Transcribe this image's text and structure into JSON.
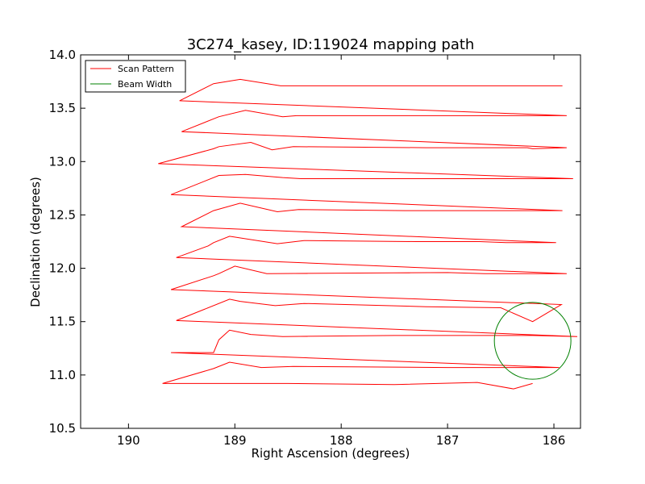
{
  "chart_data": {
    "type": "line",
    "title": "3C274_kasey, ID:119024 mapping path",
    "xlabel": "Right Ascension (degrees)",
    "ylabel": "Declination (degrees)",
    "xlim": [
      190.45,
      185.75
    ],
    "ylim": [
      10.5,
      14.0
    ],
    "x_reversed": true,
    "xticks": [
      190,
      189,
      188,
      187,
      186
    ],
    "xtick_labels": [
      "190",
      "189",
      "188",
      "187",
      "186"
    ],
    "yticks": [
      10.5,
      11.0,
      11.5,
      12.0,
      12.5,
      13.0,
      13.5,
      14.0
    ],
    "ytick_labels": [
      "10.5",
      "11.0",
      "11.5",
      "12.0",
      "12.5",
      "13.0",
      "13.5",
      "14.0"
    ],
    "legend_position": "top-left",
    "series": [
      {
        "name": "Scan Pattern",
        "color": "#ff0000",
        "x": [
          186.2,
          186.38,
          186.72,
          187.5,
          188.5,
          189.68,
          189.2,
          189.05,
          188.75,
          188.45,
          187.0,
          185.95,
          189.6,
          189.2,
          189.15,
          189.05,
          188.85,
          188.55,
          187.5,
          186.75,
          186.5,
          186.2,
          185.78,
          189.55,
          189.05,
          188.95,
          188.62,
          188.35,
          187.2,
          186.5,
          186.2,
          185.93,
          189.6,
          189.2,
          189.15,
          189.0,
          188.7,
          187.0,
          186.65,
          186.4,
          186.2,
          185.88,
          189.55,
          189.25,
          189.2,
          189.05,
          188.6,
          188.35,
          187.3,
          186.7,
          186.45,
          186.2,
          185.98,
          189.5,
          189.2,
          188.95,
          188.6,
          188.4,
          187.4,
          186.7,
          186.45,
          186.2,
          185.92,
          189.6,
          189.15,
          188.9,
          188.55,
          188.38,
          187.0,
          186.5,
          186.2,
          185.82,
          189.72,
          189.2,
          189.15,
          188.85,
          188.65,
          188.45,
          187.2,
          186.65,
          186.25,
          186.2,
          185.88,
          189.5,
          189.15,
          188.9,
          188.55,
          188.42,
          187.0,
          186.4,
          186.23,
          185.88,
          189.52,
          189.2,
          188.95,
          188.57,
          188.35,
          187.6,
          186.7,
          186.25,
          185.92
        ],
        "y": [
          10.92,
          10.87,
          10.93,
          10.91,
          10.92,
          10.92,
          11.06,
          11.12,
          11.07,
          11.08,
          11.07,
          11.07,
          11.21,
          11.21,
          11.33,
          11.42,
          11.38,
          11.36,
          11.37,
          11.37,
          11.37,
          11.37,
          11.36,
          11.51,
          11.71,
          11.69,
          11.65,
          11.67,
          11.64,
          11.63,
          11.5,
          11.66,
          11.8,
          11.93,
          11.95,
          12.02,
          11.95,
          11.96,
          11.95,
          11.95,
          11.95,
          11.95,
          12.1,
          12.21,
          12.24,
          12.3,
          12.23,
          12.26,
          12.25,
          12.25,
          12.24,
          12.24,
          12.24,
          12.39,
          12.54,
          12.61,
          12.53,
          12.55,
          12.54,
          12.54,
          12.54,
          12.54,
          12.54,
          12.69,
          12.87,
          12.88,
          12.85,
          12.84,
          12.84,
          12.84,
          12.84,
          12.84,
          12.98,
          13.12,
          13.14,
          13.18,
          13.11,
          13.14,
          13.13,
          13.13,
          13.13,
          13.12,
          13.13,
          13.28,
          13.42,
          13.48,
          13.42,
          13.43,
          13.43,
          13.43,
          13.43,
          13.43,
          13.57,
          13.73,
          13.77,
          13.71,
          13.71,
          13.71,
          13.71,
          13.71,
          13.71
        ]
      },
      {
        "name": "Beam Width",
        "color": "#008000",
        "center_x": 186.2,
        "center_y": 11.32,
        "radius_deg": 0.36
      }
    ]
  }
}
